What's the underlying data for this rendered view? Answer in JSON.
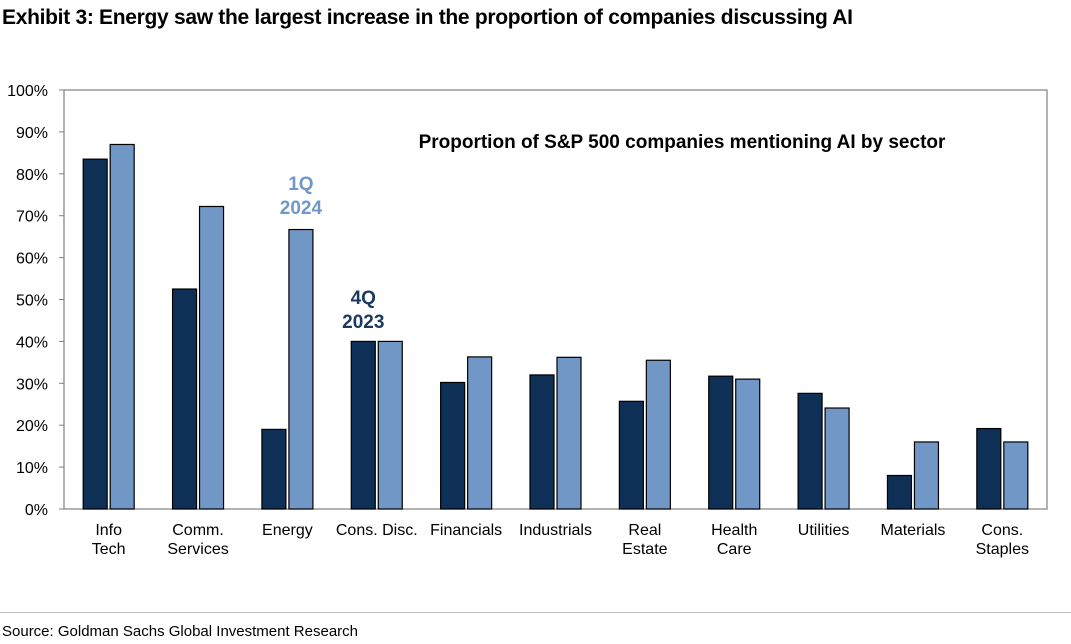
{
  "exhibit_title": "Exhibit 3: Energy saw the largest increase in the proportion of companies discussing AI",
  "source": "Source: Goldman Sachs Global Investment Research",
  "chart_data": {
    "type": "bar",
    "title": "Proportion of S&P 500 companies mentioning AI by sector",
    "xlabel": "",
    "ylabel": "",
    "ylim": [
      0,
      100
    ],
    "y_ticks": [
      "0%",
      "10%",
      "20%",
      "30%",
      "40%",
      "50%",
      "60%",
      "70%",
      "80%",
      "90%",
      "100%"
    ],
    "categories": [
      [
        "Info",
        "Tech"
      ],
      [
        "Comm.",
        "Services"
      ],
      [
        "Energy"
      ],
      [
        "Cons. Disc."
      ],
      [
        "Financials"
      ],
      [
        "Industrials"
      ],
      [
        "Real",
        "Estate"
      ],
      [
        "Health",
        "Care"
      ],
      [
        "Utilities"
      ],
      [
        "Materials"
      ],
      [
        "Cons.",
        "Staples"
      ]
    ],
    "series": [
      {
        "name": "4Q 2023",
        "name_lines": [
          "4Q",
          "2023"
        ],
        "color": "#0e2f56",
        "values": [
          83.5,
          52.5,
          19,
          40,
          30.2,
          32,
          25.7,
          31.7,
          27.6,
          8,
          19.2
        ]
      },
      {
        "name": "1Q 2024",
        "name_lines": [
          "1Q",
          "2024"
        ],
        "color": "#7197c7",
        "values": [
          87,
          72.2,
          66.7,
          40,
          36.3,
          36.2,
          35.5,
          31,
          24.1,
          16,
          16
        ]
      }
    ],
    "grid": false,
    "legend": "inline labels above Energy and Cons. Disc. bars"
  }
}
